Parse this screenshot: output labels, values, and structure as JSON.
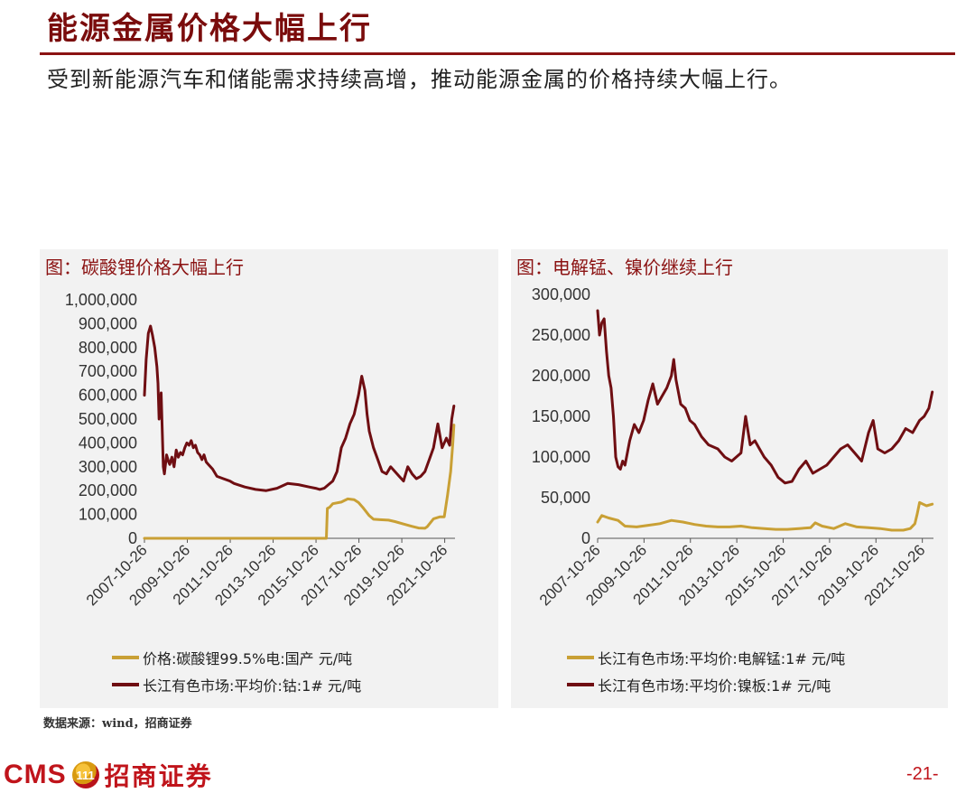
{
  "page": {
    "title": "能源金属价格大幅上行",
    "subtitle": "受到新能源汽车和储能需求持续高增，推动能源金属的价格持续大幅上行。",
    "source": "数据来源：wind，招商证券",
    "logo_text": "CMS",
    "logo_icon_text": "111",
    "company_name": "招商证券",
    "page_number": "-21-"
  },
  "colors": {
    "gold": "#C9A035",
    "maroon": "#6F0E12",
    "accent": "#8B1212"
  },
  "chart_data": [
    {
      "type": "line",
      "title": "图：碳酸锂价格大幅上行",
      "x_tick_labels": [
        "2007-10-26",
        "2009-10-26",
        "2011-10-26",
        "2013-10-26",
        "2015-10-26",
        "2017-10-26",
        "2019-10-26",
        "2021-10-26"
      ],
      "x_tick_positions": [
        2007.82,
        2009.82,
        2011.82,
        2013.82,
        2015.82,
        2017.82,
        2019.82,
        2021.82
      ],
      "xlim": [
        2007.82,
        2022.3
      ],
      "ylim": [
        0,
        1000000
      ],
      "y_ticks": [
        0,
        100000,
        200000,
        300000,
        400000,
        500000,
        600000,
        700000,
        800000,
        900000,
        1000000
      ],
      "y_tick_labels": [
        "0",
        "100,000",
        "200,000",
        "300,000",
        "400,000",
        "500,000",
        "600,000",
        "700,000",
        "800,000",
        "900,000",
        "1,000,000"
      ],
      "grid": false,
      "legend_position": "bottom",
      "series": [
        {
          "name": "价格:碳酸锂99.5%电:国产 元/吨",
          "color": "#C9A035",
          "x": [
            2007.82,
            2016.3,
            2016.35,
            2016.45,
            2016.6,
            2017.0,
            2017.3,
            2017.6,
            2017.8,
            2018.0,
            2018.3,
            2018.5,
            2018.8,
            2019.2,
            2019.5,
            2019.9,
            2020.3,
            2020.6,
            2020.9,
            2021.0,
            2021.3,
            2021.6,
            2021.8,
            2021.95,
            2022.1,
            2022.2,
            2022.25
          ],
          "y": [
            0,
            0,
            125000,
            130000,
            145000,
            152000,
            165000,
            162000,
            150000,
            130000,
            95000,
            80000,
            78000,
            76000,
            70000,
            60000,
            50000,
            43000,
            42000,
            48000,
            82000,
            90000,
            90000,
            180000,
            280000,
            400000,
            475000
          ]
        },
        {
          "name": "长江有色市场:平均价:钴:1# 元/吨",
          "color": "#6F0E12",
          "x": [
            2007.82,
            2007.9,
            2008.0,
            2008.1,
            2008.2,
            2008.3,
            2008.4,
            2008.45,
            2008.5,
            2008.6,
            2008.7,
            2008.75,
            2008.85,
            2008.95,
            2009.0,
            2009.1,
            2009.2,
            2009.3,
            2009.4,
            2009.5,
            2009.6,
            2009.7,
            2009.8,
            2009.9,
            2010.0,
            2010.1,
            2010.2,
            2010.3,
            2010.4,
            2010.5,
            2010.6,
            2010.7,
            2010.8,
            2011.0,
            2011.2,
            2011.5,
            2011.8,
            2012.0,
            2012.5,
            2013.0,
            2013.5,
            2014.0,
            2014.5,
            2015.0,
            2015.5,
            2015.8,
            2016.0,
            2016.2,
            2016.4,
            2016.6,
            2016.8,
            2017.0,
            2017.2,
            2017.4,
            2017.6,
            2017.8,
            2017.95,
            2018.1,
            2018.2,
            2018.3,
            2018.5,
            2018.7,
            2018.9,
            2019.1,
            2019.3,
            2019.5,
            2019.7,
            2019.9,
            2020.1,
            2020.3,
            2020.5,
            2020.7,
            2020.9,
            2021.1,
            2021.3,
            2021.5,
            2021.7,
            2021.9,
            2022.05,
            2022.15,
            2022.25
          ],
          "y": [
            600000,
            750000,
            860000,
            890000,
            850000,
            800000,
            720000,
            650000,
            500000,
            610000,
            300000,
            270000,
            350000,
            320000,
            310000,
            340000,
            300000,
            370000,
            340000,
            360000,
            350000,
            380000,
            400000,
            390000,
            410000,
            380000,
            390000,
            360000,
            350000,
            330000,
            350000,
            320000,
            310000,
            290000,
            260000,
            250000,
            240000,
            230000,
            215000,
            205000,
            200000,
            210000,
            230000,
            225000,
            215000,
            210000,
            205000,
            210000,
            225000,
            240000,
            280000,
            380000,
            420000,
            480000,
            520000,
            600000,
            680000,
            620000,
            520000,
            450000,
            380000,
            330000,
            280000,
            270000,
            300000,
            280000,
            260000,
            240000,
            300000,
            270000,
            250000,
            260000,
            280000,
            330000,
            380000,
            480000,
            380000,
            420000,
            390000,
            500000,
            555000
          ]
        }
      ]
    },
    {
      "type": "line",
      "title": "图：电解锰、镍价继续上行",
      "x_tick_labels": [
        "2007-10-26",
        "2009-10-26",
        "2011-10-26",
        "2013-10-26",
        "2015-10-26",
        "2017-10-26",
        "2019-10-26",
        "2021-10-26"
      ],
      "x_tick_positions": [
        2007.82,
        2009.82,
        2011.82,
        2013.82,
        2015.82,
        2017.82,
        2019.82,
        2021.82
      ],
      "xlim": [
        2007.82,
        2022.3
      ],
      "ylim": [
        0,
        300000
      ],
      "y_ticks": [
        0,
        50000,
        100000,
        150000,
        200000,
        250000,
        300000
      ],
      "y_tick_labels": [
        "0",
        "50,000",
        "100,000",
        "150,000",
        "200,000",
        "250,000",
        "300,000"
      ],
      "grid": false,
      "legend_position": "bottom",
      "series": [
        {
          "name": "长江有色市场:平均价:电解锰:1# 元/吨",
          "color": "#C9A035",
          "x": [
            2007.82,
            2008.0,
            2008.3,
            2008.7,
            2009.0,
            2009.5,
            2010.0,
            2010.5,
            2011.0,
            2011.5,
            2012.0,
            2012.5,
            2013.0,
            2013.5,
            2014.0,
            2014.5,
            2015.0,
            2015.5,
            2016.0,
            2016.5,
            2017.0,
            2017.2,
            2017.5,
            2018.0,
            2018.5,
            2019.0,
            2019.5,
            2020.0,
            2020.5,
            2021.0,
            2021.3,
            2021.5,
            2021.6,
            2021.7,
            2021.85,
            2022.0,
            2022.25
          ],
          "y": [
            20000,
            28000,
            25000,
            22000,
            15000,
            14000,
            16000,
            18000,
            22000,
            20000,
            17000,
            15000,
            14000,
            14000,
            15000,
            13000,
            12000,
            11000,
            11000,
            12000,
            13000,
            19000,
            15000,
            12000,
            18000,
            14000,
            13000,
            12000,
            10000,
            10000,
            12000,
            18000,
            30000,
            44000,
            42000,
            40000,
            42000
          ]
        },
        {
          "name": "长江有色市场:平均价:镍板:1# 元/吨",
          "color": "#6F0E12",
          "x": [
            2007.82,
            2007.9,
            2008.0,
            2008.1,
            2008.2,
            2008.3,
            2008.4,
            2008.5,
            2008.6,
            2008.7,
            2008.8,
            2008.9,
            2009.0,
            2009.2,
            2009.4,
            2009.6,
            2009.8,
            2010.0,
            2010.2,
            2010.4,
            2010.6,
            2010.8,
            2011.0,
            2011.1,
            2011.2,
            2011.4,
            2011.6,
            2011.8,
            2012.0,
            2012.3,
            2012.6,
            2013.0,
            2013.3,
            2013.6,
            2014.0,
            2014.2,
            2014.4,
            2014.6,
            2014.8,
            2015.0,
            2015.3,
            2015.6,
            2015.9,
            2016.2,
            2016.5,
            2016.8,
            2017.1,
            2017.4,
            2017.7,
            2018.0,
            2018.3,
            2018.6,
            2018.9,
            2019.2,
            2019.5,
            2019.7,
            2019.9,
            2020.2,
            2020.5,
            2020.8,
            2021.1,
            2021.4,
            2021.7,
            2021.9,
            2022.1,
            2022.25
          ],
          "y": [
            280000,
            250000,
            265000,
            270000,
            230000,
            200000,
            185000,
            150000,
            100000,
            88000,
            85000,
            95000,
            90000,
            120000,
            140000,
            130000,
            145000,
            170000,
            190000,
            165000,
            175000,
            185000,
            200000,
            220000,
            195000,
            165000,
            160000,
            145000,
            140000,
            125000,
            115000,
            110000,
            100000,
            95000,
            105000,
            150000,
            115000,
            120000,
            110000,
            100000,
            90000,
            75000,
            68000,
            70000,
            85000,
            95000,
            80000,
            85000,
            90000,
            100000,
            110000,
            115000,
            105000,
            95000,
            130000,
            145000,
            110000,
            105000,
            110000,
            120000,
            135000,
            130000,
            145000,
            150000,
            160000,
            180000
          ]
        }
      ]
    }
  ]
}
